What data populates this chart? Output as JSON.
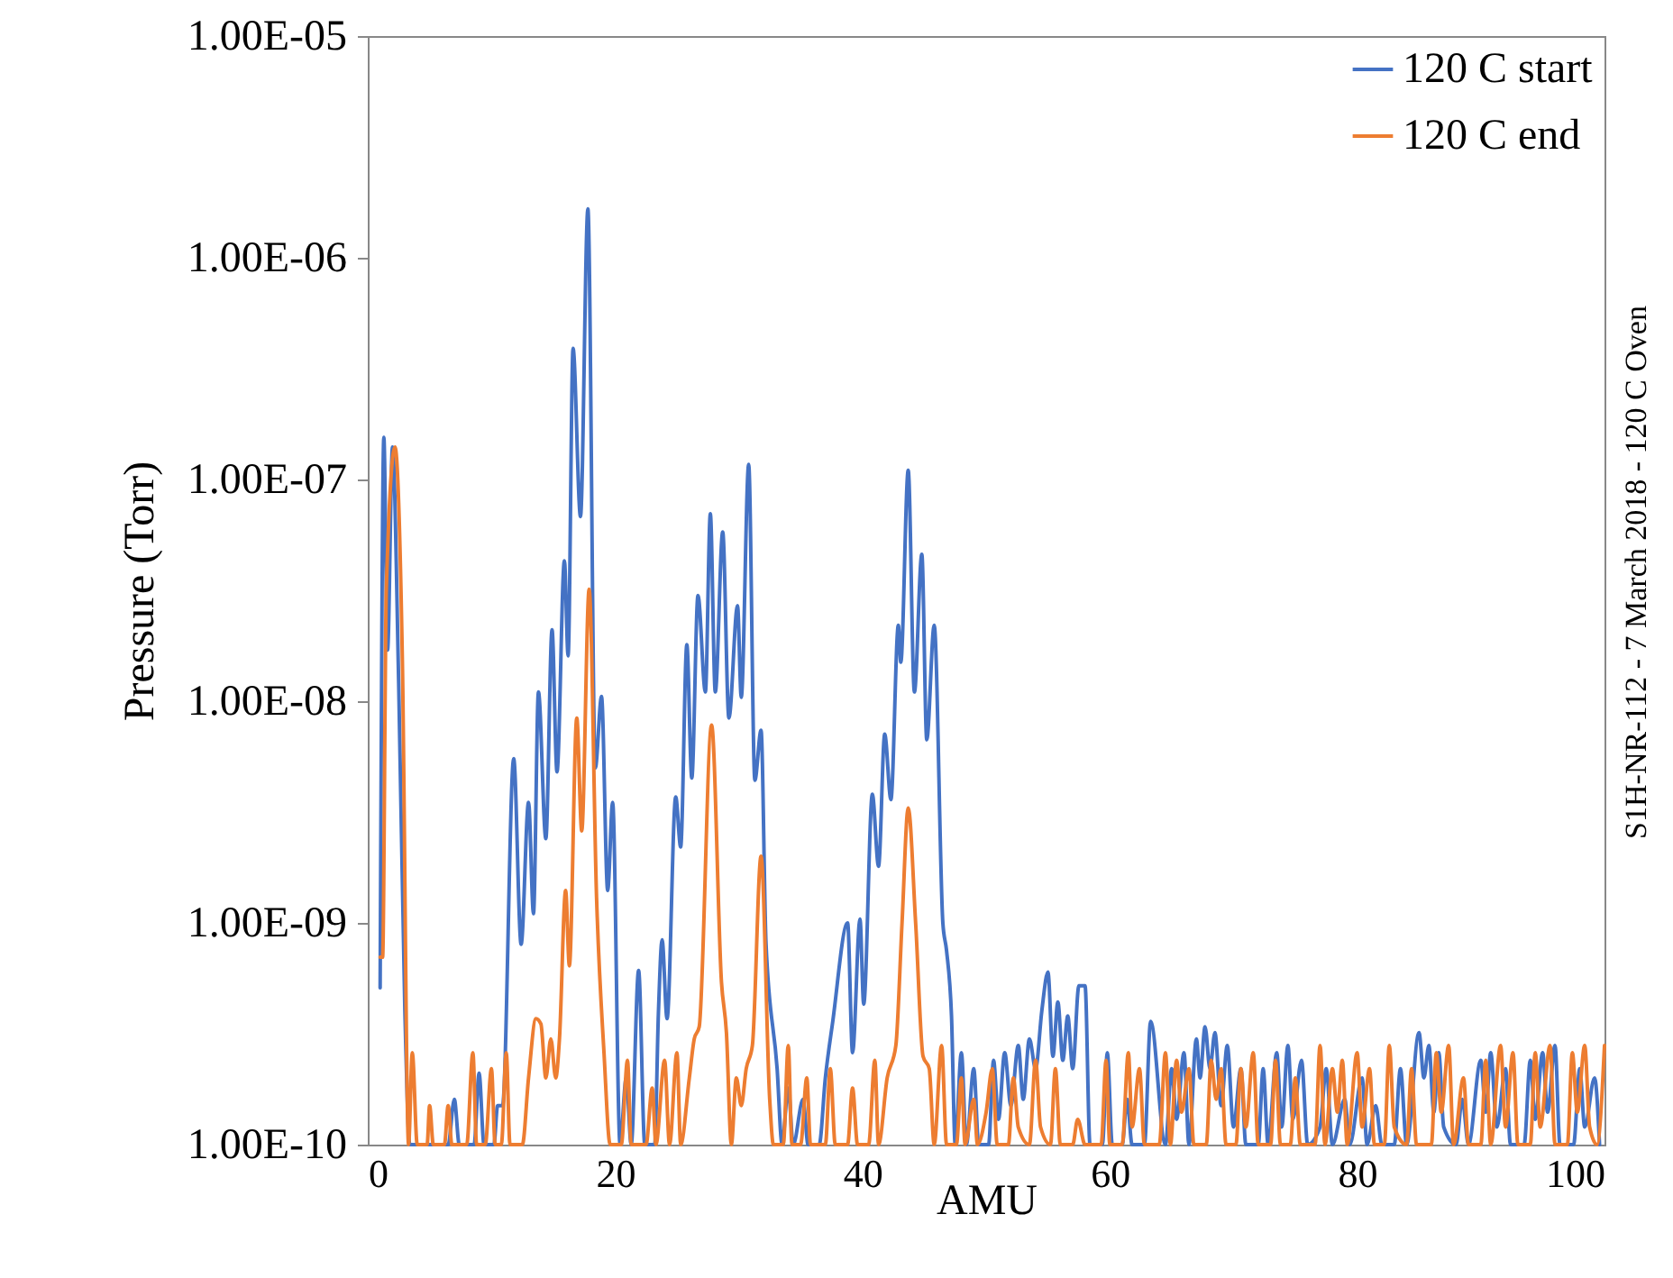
{
  "chart_data": {
    "type": "line",
    "xlabel": "AMU",
    "ylabel": "Pressure (Torr)",
    "log": "y",
    "legend": "top right",
    "grid": false,
    "line_style": "solid",
    "annotations": [
      "S1H-NR-112 - 7 March 2018 - 120 C Oven"
    ],
    "xlim": [
      0,
      100
    ],
    "xticks": [
      0,
      20,
      40,
      60,
      80,
      100
    ],
    "ylim": [
      1e-10,
      1e-05
    ],
    "yticks": [
      {
        "value": 1e-10,
        "label": "1.00E-10"
      },
      {
        "value": 1e-09,
        "label": "1.00E-09"
      },
      {
        "value": 1e-08,
        "label": "1.00E-08"
      },
      {
        "value": 1e-07,
        "label": "1.00E-07"
      },
      {
        "value": 1e-06,
        "label": "1.00E-06"
      },
      {
        "value": 1e-05,
        "label": "1.00E-05"
      }
    ],
    "series": [
      {
        "name": "120 C start",
        "color": "#4472c4",
        "x": [
          1.0,
          1.3,
          1.6,
          2.0,
          2.5,
          3.0,
          3.4,
          6.5,
          7.0,
          7.4,
          8.6,
          9.0,
          9.4,
          10.2,
          10.5,
          10.9,
          11.8,
          12.4,
          13.0,
          13.4,
          13.8,
          14.4,
          14.9,
          15.3,
          15.9,
          16.2,
          16.6,
          17.2,
          17.8,
          18.4,
          18.9,
          19.4,
          19.8,
          20.4,
          20.9,
          21.3,
          21.9,
          22.4,
          23.2,
          23.5,
          23.8,
          24.2,
          24.9,
          25.3,
          25.8,
          26.2,
          26.7,
          27.3,
          27.7,
          28.1,
          28.7,
          29.2,
          29.9,
          30.2,
          30.8,
          31.3,
          31.8,
          32.2,
          33.1,
          33.5,
          34.0,
          34.4,
          35.2,
          35.6,
          36.5,
          37.0,
          37.6,
          38.8,
          39.2,
          39.8,
          40.1,
          40.8,
          41.3,
          41.8,
          42.3,
          42.9,
          43.1,
          43.7,
          44.2,
          44.8,
          45.2,
          45.8,
          46.5,
          46.8,
          47.2,
          47.5,
          48.0,
          48.4,
          49.0,
          49.4,
          50.2,
          50.6,
          51.0,
          51.5,
          52.0,
          52.6,
          53.0,
          53.5,
          54.0,
          54.5,
          55.0,
          55.4,
          55.8,
          56.2,
          56.6,
          57.0,
          57.5,
          58.0,
          58.4,
          59.4,
          59.8,
          60.2,
          61.0,
          61.4,
          61.8,
          62.8,
          63.3,
          64.5,
          65.0,
          65.4,
          66.0,
          66.4,
          67.0,
          67.3,
          67.7,
          68.1,
          68.5,
          69.0,
          69.5,
          70.0,
          70.6,
          71.0,
          72.0,
          72.4,
          72.8,
          73.5,
          73.9,
          74.4,
          74.8,
          75.5,
          76.0,
          77.0,
          77.5,
          78.0,
          79.0,
          79.4,
          80.4,
          80.8,
          81.5,
          82.0,
          83.0,
          83.5,
          84.0,
          85.0,
          85.4,
          85.8,
          86.2,
          86.6,
          87.0,
          88.0,
          88.5,
          89.0,
          90.0,
          90.4,
          90.8,
          91.3,
          92.0,
          92.4,
          93.5,
          94.0,
          94.4,
          95.0,
          95.4,
          96.0,
          96.4,
          97.5,
          98.0,
          98.4,
          99.2,
          99.6
        ],
        "values": [
          5.1e-10,
          1.55e-07,
          1.7e-08,
          1.4e-07,
          1.2e-08,
          4e-10,
          1e-10,
          1e-10,
          1.6e-10,
          1e-10,
          1e-10,
          2.1e-10,
          1e-10,
          1e-10,
          1.5e-10,
          1.5e-10,
          5.5e-09,
          8e-10,
          3.5e-09,
          1.1e-09,
          1.1e-08,
          2.4e-09,
          2.1e-08,
          4.8e-09,
          4.3e-08,
          1.6e-08,
          3.9e-07,
          6.8e-08,
          1.66e-06,
          5e-09,
          1.05e-08,
          1.4e-09,
          3.5e-09,
          1e-10,
          2e-10,
          1e-10,
          6.1e-10,
          1e-10,
          1e-10,
          3.9e-10,
          8.4e-10,
          3.7e-10,
          3.7e-09,
          2.2e-09,
          1.8e-08,
          4.5e-09,
          3e-08,
          1.1e-08,
          7e-08,
          1.1e-08,
          5.8e-08,
          8.4e-09,
          2.7e-08,
          1.04e-08,
          1.17e-07,
          4.4e-09,
          7.4e-09,
          8.1e-10,
          2.2e-10,
          1e-10,
          1.8e-10,
          1e-10,
          1.6e-10,
          1e-10,
          1e-10,
          2e-10,
          3.6e-10,
          1e-09,
          2.6e-10,
          1.04e-09,
          4.3e-10,
          3.8e-09,
          1.8e-09,
          7.1e-09,
          3.6e-09,
          2.2e-08,
          1.5e-08,
          1.1e-07,
          1.1e-08,
          4.6e-08,
          6.7e-09,
          2.2e-08,
          1e-09,
          7.5e-10,
          3.8e-10,
          1e-10,
          2.6e-10,
          1e-10,
          2.2e-10,
          1e-10,
          1e-10,
          2.4e-10,
          1.3e-10,
          2.6e-10,
          1.5e-10,
          2.8e-10,
          1.6e-10,
          3e-10,
          2.2e-10,
          4e-10,
          6e-10,
          2.5e-10,
          4.4e-10,
          2.4e-10,
          3.8e-10,
          2.2e-10,
          5.2e-10,
          5.2e-10,
          1e-10,
          1e-10,
          2.6e-10,
          1e-10,
          1e-10,
          1.6e-10,
          1e-10,
          1e-10,
          3.6e-10,
          1e-10,
          2.2e-10,
          1.3e-10,
          2.6e-10,
          1e-10,
          3e-10,
          2e-10,
          3.4e-10,
          2.2e-10,
          3.2e-10,
          1.5e-10,
          2.8e-10,
          1.2e-10,
          2.2e-10,
          1e-10,
          1e-10,
          2.2e-10,
          1e-10,
          2.6e-10,
          1.2e-10,
          2.8e-10,
          1.3e-10,
          2.4e-10,
          1e-10,
          1.2e-10,
          2.2e-10,
          1e-10,
          1.6e-10,
          1e-10,
          2e-10,
          1e-10,
          1.5e-10,
          1e-10,
          1e-10,
          2.2e-10,
          1e-10,
          3.2e-10,
          2e-10,
          2.8e-10,
          1.4e-10,
          2.6e-10,
          1.2e-10,
          1e-10,
          1.6e-10,
          1e-10,
          2.4e-10,
          1.4e-10,
          2.6e-10,
          1.2e-10,
          2.2e-10,
          1e-10,
          1e-10,
          2.4e-10,
          1.3e-10,
          2.6e-10,
          1.4e-10,
          2.8e-10,
          1e-10,
          1e-10,
          2.2e-10,
          1.2e-10,
          2e-10,
          1e-10
        ]
      },
      {
        "name": "120 C end",
        "color": "#ed7d31",
        "x": [
          1.0,
          1.2,
          1.5,
          2.2,
          2.8,
          3.3,
          3.6,
          4.0,
          4.8,
          5.0,
          5.3,
          6.2,
          6.5,
          6.8,
          8.0,
          8.5,
          8.8,
          9.5,
          10.0,
          10.3,
          10.8,
          11.2,
          11.5,
          12.5,
          13.0,
          13.6,
          14.0,
          14.4,
          14.8,
          15.2,
          15.5,
          16.0,
          16.3,
          16.9,
          17.3,
          17.9,
          18.5,
          19.1,
          19.6,
          20.5,
          21.0,
          21.3,
          22.5,
          23.0,
          23.3,
          24.0,
          24.4,
          25.0,
          25.3,
          26.0,
          26.4,
          26.8,
          27.8,
          28.6,
          29.0,
          29.4,
          29.8,
          30.2,
          30.6,
          31.1,
          31.8,
          32.5,
          32.8,
          33.6,
          34.0,
          34.3,
          35.0,
          35.5,
          35.8,
          37.0,
          37.4,
          37.8,
          38.8,
          39.2,
          39.6,
          40.5,
          41.0,
          41.3,
          42.0,
          42.7,
          43.2,
          43.7,
          44.3,
          44.9,
          45.4,
          45.8,
          46.4,
          46.8,
          47.6,
          48.0,
          48.3,
          49.0,
          49.3,
          50.0,
          50.5,
          50.9,
          51.8,
          52.2,
          52.6,
          53.5,
          54.0,
          54.4,
          55.2,
          55.6,
          56.0,
          57.0,
          57.4,
          58.0,
          59.3,
          59.7,
          60.0,
          61.0,
          61.5,
          61.8,
          62.4,
          62.8,
          64.0,
          64.5,
          64.9,
          65.4,
          65.8,
          66.4,
          66.8,
          67.8,
          68.2,
          68.6,
          69.0,
          69.4,
          70.2,
          70.6,
          71.0,
          71.6,
          72.0,
          73.0,
          73.4,
          73.8,
          74.6,
          75.0,
          75.4,
          76.6,
          77.0,
          77.4,
          78.0,
          78.4,
          78.8,
          79.2,
          80.0,
          80.4,
          81.0,
          81.4,
          82.2,
          82.6,
          83.0,
          84.0,
          84.4,
          84.8,
          86.0,
          86.4,
          86.8,
          87.4,
          87.8,
          88.6,
          89.0,
          90.0,
          90.4,
          90.8,
          91.6,
          92.0,
          92.6,
          93.0,
          94.0,
          94.4,
          94.8,
          95.6,
          96.0,
          97.0,
          97.4,
          97.8,
          98.4,
          98.8,
          99.4,
          100
        ],
        "values": [
          7e-10,
          7e-10,
          3.2e-08,
          1.4e-07,
          1.5e-08,
          1e-10,
          2.6e-10,
          1e-10,
          1e-10,
          1.5e-10,
          1e-10,
          1e-10,
          1.5e-10,
          1e-10,
          1e-10,
          2.6e-10,
          1e-10,
          1e-10,
          2.2e-10,
          1e-10,
          1e-10,
          2.6e-10,
          1e-10,
          1e-10,
          2e-10,
          3.7e-10,
          3.5e-10,
          2e-10,
          3e-10,
          2e-10,
          3e-10,
          1.4e-09,
          6.4e-10,
          8.4e-09,
          2.6e-09,
          3.2e-08,
          1.3e-09,
          2.6e-10,
          1e-10,
          1e-10,
          2.4e-10,
          1e-10,
          1e-10,
          1.8e-10,
          1e-10,
          2.4e-10,
          1e-10,
          2.6e-10,
          1e-10,
          2e-10,
          3e-10,
          3.4e-10,
          7.8e-09,
          5.4e-10,
          3.2e-10,
          1e-10,
          2e-10,
          1.5e-10,
          2.2e-10,
          2.8e-10,
          2e-09,
          1.6e-10,
          1e-10,
          1e-10,
          2.8e-10,
          1e-10,
          1e-10,
          2e-10,
          1e-10,
          1e-10,
          2.2e-10,
          1e-10,
          1e-10,
          1.8e-10,
          1e-10,
          1e-10,
          2.4e-10,
          1e-10,
          2e-10,
          2.8e-10,
          1e-09,
          3.3e-09,
          1e-09,
          2.5e-10,
          2.2e-10,
          1e-10,
          2.8e-10,
          1e-10,
          1e-10,
          2e-10,
          1e-10,
          1.6e-10,
          1e-10,
          1.4e-10,
          2.2e-10,
          1e-10,
          1e-10,
          2e-10,
          1.2e-10,
          1e-10,
          2.4e-10,
          1.2e-10,
          1e-10,
          2.2e-10,
          1e-10,
          1e-10,
          1.3e-10,
          1e-10,
          1e-10,
          2.4e-10,
          1e-10,
          1e-10,
          2.6e-10,
          1.2e-10,
          2.2e-10,
          1e-10,
          1e-10,
          2.6e-10,
          1e-10,
          2.4e-10,
          1.4e-10,
          2.2e-10,
          1e-10,
          1e-10,
          2.4e-10,
          1.6e-10,
          2.2e-10,
          1e-10,
          1e-10,
          2.2e-10,
          1.2e-10,
          2.6e-10,
          1e-10,
          1e-10,
          2.4e-10,
          1e-10,
          1e-10,
          2e-10,
          1e-10,
          1e-10,
          2.8e-10,
          1e-10,
          2.2e-10,
          1.4e-10,
          2.4e-10,
          1e-10,
          2.6e-10,
          1.2e-10,
          2.2e-10,
          1e-10,
          1e-10,
          2.8e-10,
          1.2e-10,
          1e-10,
          2.2e-10,
          1e-10,
          1e-10,
          2.6e-10,
          1.4e-10,
          2.8e-10,
          1e-10,
          2e-10,
          1e-10,
          1e-10,
          2.4e-10,
          1e-10,
          2.8e-10,
          1.2e-10,
          2.6e-10,
          1e-10,
          1e-10,
          2.6e-10,
          1.2e-10,
          2.8e-10,
          1e-10,
          1e-10,
          2.6e-10,
          1.4e-10,
          2.8e-10,
          1.2e-10,
          1e-10,
          2.8e-10
        ]
      }
    ]
  }
}
